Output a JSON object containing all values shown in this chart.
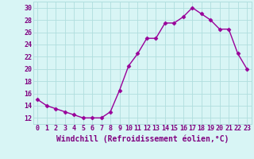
{
  "x": [
    0,
    1,
    2,
    3,
    4,
    5,
    6,
    7,
    8,
    9,
    10,
    11,
    12,
    13,
    14,
    15,
    16,
    17,
    18,
    19,
    20,
    21,
    22,
    23
  ],
  "y": [
    15,
    14,
    13.5,
    13,
    12.5,
    12,
    12,
    12,
    13,
    16.5,
    20.5,
    22.5,
    25,
    25,
    27.5,
    27.5,
    28.5,
    30,
    29,
    28,
    26.5,
    26.5,
    22.5,
    20
  ],
  "line_color": "#990099",
  "marker_color": "#990099",
  "bg_color": "#d8f5f5",
  "grid_color": "#b0dede",
  "xlabel": "Windchill (Refroidissement éolien,°C)",
  "xlim": [
    -0.5,
    23.5
  ],
  "ylim": [
    11,
    31
  ],
  "yticks": [
    12,
    14,
    16,
    18,
    20,
    22,
    24,
    26,
    28,
    30
  ],
  "xticks": [
    0,
    1,
    2,
    3,
    4,
    5,
    6,
    7,
    8,
    9,
    10,
    11,
    12,
    13,
    14,
    15,
    16,
    17,
    18,
    19,
    20,
    21,
    22,
    23
  ],
  "tick_label_color": "#800080",
  "xlabel_color": "#800080",
  "tick_fontsize": 6.0,
  "xlabel_fontsize": 7.0,
  "linewidth": 1.0,
  "markersize": 2.5
}
